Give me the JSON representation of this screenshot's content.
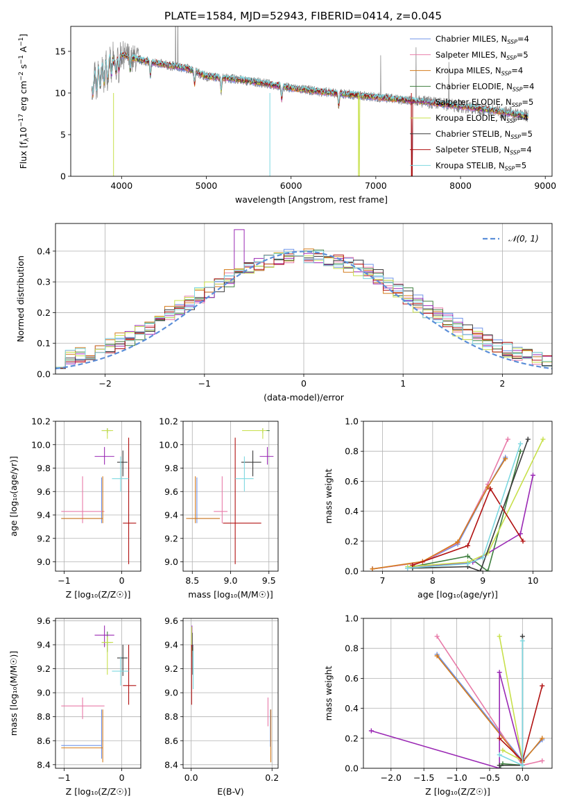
{
  "title": "PLATE=1584, MJD=52943, FIBERID=0414, z=0.045",
  "colors": {
    "Chabrier MILES": "#6f93e8",
    "Salpeter MILES": "#e87aa8",
    "Kroupa MILES": "#d47b1c",
    "Chabrier ELODIE": "#3f7f3f",
    "Salpeter ELODIE": "#9a28b4",
    "Kroupa ELODIE": "#c7e04a",
    "Chabrier STELIB": "#3a3a3a",
    "Salpeter STELIB": "#b01010",
    "Kroupa STELIB": "#7dd8e0",
    "data": "#808080",
    "normal": "#5b8ed8"
  },
  "panels": {
    "spectrum": {
      "xlabel": "wavelength [Angstrom, rest frame]",
      "ylabel_main": "Flux [f",
      "ylabel_sub": "λ",
      "ylabel_rest": "10",
      "ylabel_exp1": "−17",
      "ylabel_unit": " erg cm",
      "ylabel_exp2": "−2",
      "ylabel_s": " s",
      "ylabel_exp3": "−1",
      "ylabel_end": " A",
      "ylabel_exp4": "−1",
      "ylabel_close": "]",
      "xticks": [
        4000,
        5000,
        6000,
        7000,
        8000,
        9000
      ],
      "yticks": [
        0,
        5,
        10,
        15
      ],
      "xlim": [
        3400,
        9080
      ],
      "ylim": [
        0,
        18
      ],
      "legend": [
        {
          "name": "Chabrier MILES",
          "n": "4"
        },
        {
          "name": "Salpeter MILES",
          "n": "5"
        },
        {
          "name": "Kroupa MILES",
          "n": "4"
        },
        {
          "name": "Chabrier ELODIE",
          "n": "4"
        },
        {
          "name": "Salpeter ELODIE",
          "n": "5"
        },
        {
          "name": "Kroupa ELODIE",
          "n": "4"
        },
        {
          "name": "Chabrier STELIB",
          "n": "5"
        },
        {
          "name": "Salpeter STELIB",
          "n": "4"
        },
        {
          "name": "Kroupa STELIB",
          "n": "5"
        }
      ],
      "nssp_label": "N",
      "nssp_sub": "SSP"
    },
    "residuals": {
      "xlabel": "(data-model)/error",
      "ylabel": "Normed distribution",
      "xticks": [
        -2,
        -1,
        0,
        1,
        2
      ],
      "yticks": [
        0.0,
        0.1,
        0.2,
        0.3,
        0.4
      ],
      "xlim": [
        -2.5,
        2.5
      ],
      "ylim": [
        0,
        0.49
      ],
      "legend_label": "𝒩(0, 1)"
    },
    "z_age": {
      "xlabel": "Z [log₁₀(Z/Z☉)]",
      "ylabel": "age  [log₁₀(age/yr)]",
      "xticks": [
        -1,
        0
      ],
      "yticks": [
        9.0,
        9.2,
        9.4,
        9.6,
        9.8,
        10.0,
        10.2
      ],
      "xlim": [
        -1.15,
        0.33
      ],
      "ylim": [
        8.92,
        10.2
      ]
    },
    "mass_age": {
      "xlabel": "mass [log₁₀(M/M☉)]",
      "xticks": [
        8.5,
        9.0,
        9.5
      ],
      "yticks": [
        9.0,
        9.2,
        9.4,
        9.6,
        9.8,
        10.0,
        10.2
      ],
      "xlim": [
        8.38,
        9.62
      ],
      "ylim": [
        8.92,
        10.2
      ]
    },
    "age_weight": {
      "xlabel": "age  [log₁₀(age/yr)]",
      "ylabel": "mass weight",
      "xticks": [
        7,
        8,
        9,
        10
      ],
      "yticks": [
        0.0,
        0.2,
        0.4,
        0.6,
        0.8,
        1.0
      ],
      "xlim": [
        6.62,
        10.38
      ],
      "ylim": [
        0,
        1.0
      ]
    },
    "z_mass": {
      "xlabel": "Z [log₁₀(Z/Z☉)]",
      "ylabel": "mass [log₁₀(M/M☉)]",
      "xticks": [
        -1,
        0
      ],
      "yticks": [
        8.4,
        8.6,
        8.8,
        9.0,
        9.2,
        9.4,
        9.6
      ],
      "xlim": [
        -1.15,
        0.33
      ],
      "ylim": [
        8.37,
        9.62
      ]
    },
    "ebv_mass": {
      "xlabel": "E(B-V)",
      "xticks": [
        0.0,
        0.2
      ],
      "yticks": [
        8.4,
        8.6,
        8.8,
        9.0,
        9.2,
        9.4,
        9.6
      ],
      "xlim": [
        -0.02,
        0.215
      ],
      "ylim": [
        8.37,
        9.62
      ]
    },
    "z_weight": {
      "xlabel": "Z [log₁₀(Z/Z☉)]",
      "ylabel": "mass weight",
      "xticks": [
        -2.0,
        -1.5,
        -1.0,
        -0.5,
        0.0
      ],
      "yticks": [
        0.0,
        0.2,
        0.4,
        0.6,
        0.8,
        1.0
      ],
      "xlim": [
        -2.42,
        0.45
      ],
      "ylim": [
        0,
        1.0
      ]
    }
  },
  "chart_data": [
    {
      "type": "line",
      "title": "PLATE=1584, MJD=52943, FIBERID=0414, z=0.045",
      "xlabel": "wavelength [Angstrom, rest frame]",
      "continuum": {
        "x": [
          3650,
          3800,
          4000,
          4200,
          4500,
          4800,
          5000,
          5300,
          5600,
          6000,
          6400,
          6800,
          7200,
          7600,
          8000,
          8400,
          8800
        ],
        "y": [
          10.8,
          12.5,
          14.6,
          14.0,
          13.4,
          12.9,
          12.0,
          11.7,
          11.3,
          10.6,
          10.1,
          9.7,
          9.3,
          8.9,
          8.4,
          7.9,
          7.2
        ]
      }
    },
    {
      "type": "bar",
      "title": "",
      "xlabel": "(data-model)/error",
      "ylabel": "Normed distribution",
      "bin_width": 0.1,
      "bins_from": -2.5,
      "series_shape_center": 0.0,
      "series_shape_sigma": 1.0
    },
    {
      "type": "scatter",
      "name": "age vs Z, mass; mass-weight distributions",
      "series": [
        {
          "name": "Chabrier MILES",
          "Z": -0.35,
          "Z_err": [
            -1.05,
            -0.35
          ],
          "age": 9.37,
          "age_err": [
            9.33,
            9.72
          ],
          "mass": 8.56,
          "mass_err": [
            8.45,
            8.86
          ],
          "ebv": 0.196,
          "ebv_err": [
            8.55,
            8.86
          ]
        },
        {
          "name": "Salpeter MILES",
          "Z": -0.68,
          "Z_err": [
            -1.05,
            -0.3
          ],
          "age": 9.43,
          "age_err": [
            9.33,
            9.73
          ],
          "mass": 8.89,
          "mass_err": [
            8.78,
            8.96
          ],
          "ebv": 0.19,
          "ebv_err": [
            8.72,
            8.96
          ]
        },
        {
          "name": "Kroupa MILES",
          "Z": -0.33,
          "Z_err": [
            -1.05,
            -0.33
          ],
          "age": 9.37,
          "age_err": [
            9.33,
            9.73
          ],
          "mass": 8.54,
          "mass_err": [
            8.42,
            8.86
          ],
          "ebv": 0.197,
          "ebv_err": [
            8.42,
            8.86
          ]
        },
        {
          "name": "Chabrier ELODIE",
          "Z": -0.25,
          "Z_err": [
            -0.35,
            -0.18
          ],
          "age": 10.12,
          "age_err": [
            10.1,
            10.14
          ],
          "mass": 9.42,
          "mass_err": [
            9.34,
            9.51
          ],
          "ebv": 0.003,
          "ebv_err": [
            9.35,
            9.5
          ]
        },
        {
          "name": "Salpeter ELODIE",
          "Z": -0.3,
          "Z_err": [
            -0.47,
            -0.13
          ],
          "age": 9.9,
          "age_err": [
            9.83,
            9.98
          ],
          "mass": 9.48,
          "mass_err": [
            9.38,
            9.56
          ],
          "ebv": 0.002,
          "ebv_err": [
            9.38,
            9.56
          ]
        },
        {
          "name": "Kroupa ELODIE",
          "Z": -0.25,
          "Z_err": [
            -0.35,
            -0.15
          ],
          "age": 10.12,
          "age_err": [
            10.05,
            10.14
          ],
          "mass": 9.42,
          "mass_err": [
            9.15,
            9.47
          ],
          "ebv": 0.001,
          "ebv_err": [
            9.3,
            9.55
          ]
        },
        {
          "name": "Chabrier STELIB",
          "Z": 0.02,
          "Z_err": [
            -0.08,
            0.1
          ],
          "age": 9.85,
          "age_err": [
            9.73,
            9.95
          ],
          "mass": 9.29,
          "mass_err": [
            9.14,
            9.4
          ],
          "ebv": 0.004,
          "ebv_err": [
            9.15,
            9.4
          ]
        },
        {
          "name": "Salpeter STELIB",
          "Z": 0.12,
          "Z_err": [
            0.02,
            0.25
          ],
          "age": 9.33,
          "age_err": [
            8.98,
            10.06
          ],
          "mass": 9.06,
          "mass_err": [
            8.9,
            9.4
          ],
          "ebv": 0.001,
          "ebv_err": [
            8.9,
            9.4
          ]
        },
        {
          "name": "Kroupa STELIB",
          "Z": -0.02,
          "Z_err": [
            -0.17,
            0.12
          ],
          "age": 9.71,
          "age_err": [
            9.6,
            9.9
          ],
          "mass": 9.18,
          "mass_err": [
            9.06,
            9.3
          ],
          "ebv": 0.005,
          "ebv_err": [
            9.03,
            9.35
          ]
        }
      ]
    },
    {
      "type": "line",
      "xlabel": "age  [log₁₀(age/yr)]",
      "ylabel": "mass weight",
      "series": [
        {
          "name": "Chabrier MILES",
          "x": [
            6.8,
            7.8,
            8.5,
            9.1,
            9.45
          ],
          "y": [
            0.015,
            0.06,
            0.18,
            0.56,
            0.76
          ]
        },
        {
          "name": "Salpeter MILES",
          "x": [
            6.8,
            7.8,
            8.5,
            9.1,
            9.5
          ],
          "y": [
            0.015,
            0.06,
            0.19,
            0.58,
            0.88
          ]
        },
        {
          "name": "Kroupa MILES",
          "x": [
            6.8,
            7.8,
            8.5,
            9.1,
            9.45
          ],
          "y": [
            0.015,
            0.065,
            0.195,
            0.56,
            0.75
          ]
        },
        {
          "name": "Chabrier ELODIE",
          "x": [
            7.6,
            8.7,
            9.1,
            9.75
          ],
          "y": [
            0.03,
            0.1,
            0.0,
            0.8
          ]
        },
        {
          "name": "Salpeter ELODIE",
          "x": [
            7.5,
            8.8,
            9.75,
            10.0
          ],
          "y": [
            0.02,
            0.06,
            0.25,
            0.64
          ]
        },
        {
          "name": "Kroupa ELODIE",
          "x": [
            7.5,
            8.7,
            9.1,
            10.2
          ],
          "y": [
            0.03,
            0.06,
            0.12,
            0.88
          ]
        },
        {
          "name": "Chabrier STELIB",
          "x": [
            7.6,
            8.7,
            8.95,
            9.9
          ],
          "y": [
            0.02,
            0.03,
            0.0,
            0.88
          ]
        },
        {
          "name": "Salpeter STELIB",
          "x": [
            7.6,
            8.7,
            9.15,
            9.8
          ],
          "y": [
            0.04,
            0.17,
            0.55,
            0.2
          ]
        },
        {
          "name": "Kroupa STELIB",
          "x": [
            7.5,
            8.7,
            9.0,
            9.75
          ],
          "y": [
            0.02,
            0.05,
            0.09,
            0.85
          ]
        }
      ]
    },
    {
      "type": "line",
      "xlabel": "Z [log₁₀(Z/Z☉)]",
      "ylabel": "mass weight",
      "series": [
        {
          "name": "Chabrier MILES",
          "x": [
            -1.3,
            0.0,
            0.3
          ],
          "y": [
            0.76,
            0.05,
            0.19
          ]
        },
        {
          "name": "Salpeter MILES",
          "x": [
            -1.3,
            0.0,
            0.3
          ],
          "y": [
            0.88,
            0.02,
            0.05
          ]
        },
        {
          "name": "Kroupa MILES",
          "x": [
            -1.3,
            0.0,
            0.3
          ],
          "y": [
            0.75,
            0.04,
            0.2
          ]
        },
        {
          "name": "Chabrier ELODIE",
          "x": [
            -0.35,
            -0.3,
            0.0
          ],
          "y": [
            0.0,
            0.03,
            0.02
          ]
        },
        {
          "name": "Salpeter ELODIE",
          "x": [
            -2.3,
            -0.35,
            -0.35,
            0.0
          ],
          "y": [
            0.25,
            0.0,
            0.64,
            0.05
          ]
        },
        {
          "name": "Kroupa ELODIE",
          "x": [
            -0.35,
            0.0,
            -0.3
          ],
          "y": [
            0.88,
            0.05,
            0.12
          ]
        },
        {
          "name": "Chabrier STELIB",
          "x": [
            -0.35,
            0.0,
            0.0
          ],
          "y": [
            0.02,
            0.02,
            0.88
          ]
        },
        {
          "name": "Salpeter STELIB",
          "x": [
            -0.35,
            0.0,
            0.3
          ],
          "y": [
            0.2,
            0.05,
            0.55
          ]
        },
        {
          "name": "Kroupa STELIB",
          "x": [
            -0.35,
            0.0,
            0.0
          ],
          "y": [
            0.09,
            0.02,
            0.85
          ]
        }
      ]
    }
  ]
}
